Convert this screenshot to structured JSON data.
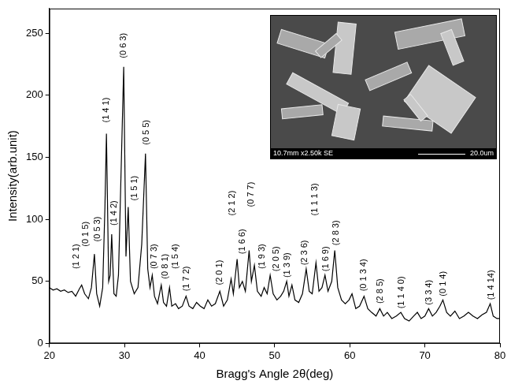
{
  "chart_data": {
    "type": "line",
    "x_label": "Bragg's Angle 2θ(deg)",
    "y_label": "Intensity(arb.unit)",
    "color": "#000000",
    "grid": false,
    "xlim": [
      20,
      80
    ],
    "xticks": [
      20,
      30,
      40,
      50,
      60,
      70,
      80
    ],
    "ylim": [
      0,
      270
    ],
    "yticks": [
      0,
      50,
      100,
      150,
      200,
      250
    ],
    "x": [
      20,
      20.5,
      21,
      21.5,
      22,
      22.5,
      23,
      23.5,
      24,
      24.3,
      24.7,
      25.2,
      25.6,
      26.0,
      26.3,
      26.7,
      27.1,
      27.4,
      27.6,
      27.9,
      28.1,
      28.3,
      28.6,
      28.9,
      29.2,
      29.6,
      29.9,
      30.2,
      30.5,
      30.8,
      31.3,
      31.8,
      32.3,
      32.8,
      33.1,
      33.4,
      33.7,
      34.0,
      34.4,
      34.9,
      35.2,
      35.6,
      36.0,
      36.3,
      36.8,
      37.2,
      37.7,
      38.2,
      38.6,
      39.1,
      39.6,
      40.1,
      40.6,
      41.1,
      41.6,
      42.1,
      42.7,
      43.2,
      43.7,
      44.2,
      44.5,
      45.0,
      45.3,
      45.7,
      46.1,
      46.6,
      46.9,
      47.3,
      47.7,
      48.2,
      48.6,
      49.0,
      49.4,
      49.8,
      50.3,
      50.8,
      51.2,
      51.6,
      51.9,
      52.3,
      52.7,
      53.2,
      53.7,
      54.2,
      54.6,
      55.0,
      55.5,
      55.9,
      56.3,
      56.7,
      57.1,
      57.6,
      58.0,
      58.4,
      58.9,
      59.4,
      59.9,
      60.3,
      60.8,
      61.3,
      61.9,
      62.4,
      62.9,
      63.5,
      64.0,
      64.5,
      65.0,
      65.6,
      66.2,
      66.8,
      67.3,
      67.9,
      68.5,
      69.0,
      69.5,
      70.0,
      70.5,
      71.0,
      71.5,
      72.0,
      72.4,
      72.9,
      73.4,
      74.0,
      74.6,
      75.2,
      75.8,
      76.4,
      77.0,
      77.6,
      78.2,
      78.7,
      79.1,
      79.6,
      80.0
    ],
    "values": [
      45,
      43,
      44,
      42,
      43,
      41,
      42,
      38,
      44,
      47,
      40,
      36,
      45,
      72,
      40,
      30,
      45,
      110,
      169,
      50,
      55,
      88,
      40,
      38,
      55,
      150,
      223,
      70,
      110,
      50,
      40,
      45,
      80,
      153,
      60,
      45,
      55,
      38,
      32,
      47,
      33,
      30,
      45,
      30,
      32,
      28,
      30,
      38,
      30,
      28,
      33,
      30,
      28,
      35,
      30,
      32,
      42,
      30,
      35,
      52,
      40,
      68,
      45,
      50,
      42,
      75,
      50,
      63,
      42,
      38,
      45,
      40,
      55,
      40,
      35,
      38,
      42,
      50,
      38,
      47,
      35,
      33,
      40,
      60,
      42,
      40,
      65,
      42,
      45,
      55,
      42,
      50,
      75,
      45,
      35,
      32,
      35,
      40,
      28,
      30,
      38,
      28,
      25,
      22,
      28,
      22,
      25,
      20,
      22,
      25,
      20,
      18,
      22,
      25,
      20,
      22,
      28,
      22,
      25,
      30,
      35,
      25,
      22,
      26,
      20,
      22,
      25,
      22,
      20,
      23,
      25,
      32,
      22,
      20,
      20
    ],
    "annotations": [
      {
        "text": "(1 2 1)",
        "x": 23.6,
        "y": 60
      },
      {
        "text": "(0 1 5)",
        "x": 24.9,
        "y": 78
      },
      {
        "text": "(0 5 3)",
        "x": 26.4,
        "y": 82
      },
      {
        "text": "(1 4 1)",
        "x": 27.6,
        "y": 178
      },
      {
        "text": "(1 4 2)",
        "x": 28.6,
        "y": 95
      },
      {
        "text": "(0 6 3)",
        "x": 29.9,
        "y": 230
      },
      {
        "text": "(1 5 1)",
        "x": 31.3,
        "y": 115
      },
      {
        "text": "(0 5 5)",
        "x": 32.9,
        "y": 160
      },
      {
        "text": "(0 7 3)",
        "x": 34.0,
        "y": 60
      },
      {
        "text": "(0 8 1)",
        "x": 35.4,
        "y": 52
      },
      {
        "text": "(1 5 4)",
        "x": 36.8,
        "y": 60
      },
      {
        "text": "(1 7 2)",
        "x": 38.3,
        "y": 42
      },
      {
        "text": "(2 0 1)",
        "x": 42.7,
        "y": 47
      },
      {
        "text": "(2 1 2)",
        "x": 44.4,
        "y": 103
      },
      {
        "text": "(1 6 6)",
        "x": 45.7,
        "y": 72
      },
      {
        "text": "(0 7 7)",
        "x": 46.9,
        "y": 110
      },
      {
        "text": "(1 9 3)",
        "x": 48.3,
        "y": 60
      },
      {
        "text": "(2 0 5)",
        "x": 50.2,
        "y": 58
      },
      {
        "text": "(1 3 9)",
        "x": 51.7,
        "y": 53
      },
      {
        "text": "(2 3 6)",
        "x": 54.0,
        "y": 63
      },
      {
        "text": "(1 1 1 3)",
        "x": 55.4,
        "y": 103
      },
      {
        "text": "(1 6 9)",
        "x": 56.8,
        "y": 58
      },
      {
        "text": "(2 8 3)",
        "x": 58.2,
        "y": 79
      },
      {
        "text": "(0 1 3 4)",
        "x": 61.9,
        "y": 42
      },
      {
        "text": "(2 8 5)",
        "x": 64.1,
        "y": 32
      },
      {
        "text": "(1 1 4 0)",
        "x": 66.9,
        "y": 28
      },
      {
        "text": "(3 3 4)",
        "x": 70.6,
        "y": 31
      },
      {
        "text": "(0 1 4)",
        "x": 72.5,
        "y": 38
      },
      {
        "text": "(1 4 14)",
        "x": 78.8,
        "y": 35
      }
    ],
    "inset": {
      "caption": "10.7mm x2.50k SE",
      "scale_bar": "20.0um"
    }
  }
}
